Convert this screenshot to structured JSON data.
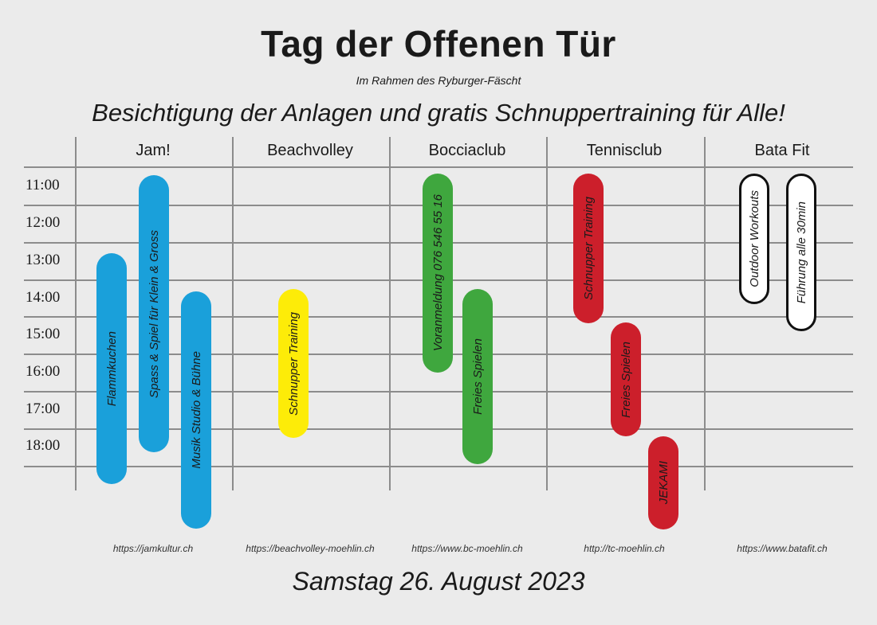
{
  "header": {
    "title": "Tag der Offenen Tür",
    "subtitle": "Im Rahmen des Ryburger-Fäscht",
    "headline": "Besichtigung der Anlagen und gratis Schnuppertraining für Alle!"
  },
  "columns": [
    {
      "name": "Jam!",
      "url": "https://jamkultur.ch"
    },
    {
      "name": "Beachvolley",
      "url": "https://beachvolley-moehlin.ch"
    },
    {
      "name": "Bocciaclub",
      "url": "https://www.bc-moehlin.ch"
    },
    {
      "name": "Tennisclub",
      "url": "http://tc-moehlin.ch"
    },
    {
      "name": "Bata Fit",
      "url": "https://www.batafit.ch"
    }
  ],
  "times": [
    "11:00",
    "12:00",
    "13:00",
    "14:00",
    "15:00",
    "16:00",
    "17:00",
    "18:00"
  ],
  "events": [
    {
      "label": "Flammkuchen",
      "column": "Jam!",
      "color": "#1aa0da"
    },
    {
      "label": "Spass & Spiel für Klein & Gross",
      "column": "Jam!",
      "color": "#1aa0da"
    },
    {
      "label": "Musik Studio & Bühne",
      "column": "Jam!",
      "color": "#1aa0da"
    },
    {
      "label": "Schnupper Training",
      "column": "Beachvolley",
      "color": "#fdec08"
    },
    {
      "label": "Voranmeldung 076 546 55 16",
      "column": "Bocciaclub",
      "color": "#3fa73e"
    },
    {
      "label": "Freies Spielen",
      "column": "Bocciaclub",
      "color": "#3fa73e"
    },
    {
      "label": "Schnupper Training",
      "column": "Tennisclub",
      "color": "#cc1f2b"
    },
    {
      "label": "Freies Spielen",
      "column": "Tennisclub",
      "color": "#cc1f2b"
    },
    {
      "label": "JEKAMI",
      "column": "Tennisclub",
      "color": "#cc1f2b"
    },
    {
      "label": "Outdoor Workouts",
      "column": "Bata Fit",
      "color": "#ffffff"
    },
    {
      "label": "Führung alle 30min",
      "column": "Bata Fit",
      "color": "#ffffff"
    }
  ],
  "footer": {
    "date": "Samstag 26. August 2023"
  }
}
